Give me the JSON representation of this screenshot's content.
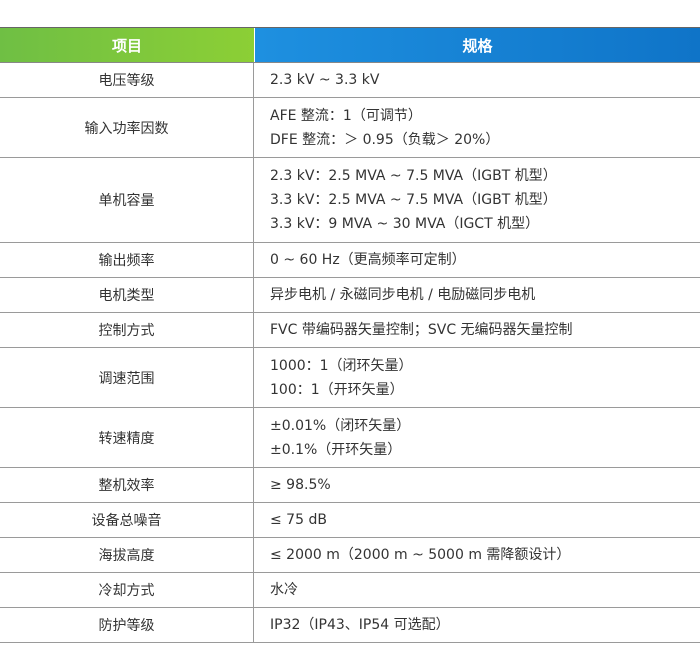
{
  "header": {
    "item": "项目",
    "spec": "规格"
  },
  "rows": [
    {
      "item": "电压等级",
      "lines": [
        "2.3 kV ~ 3.3 kV"
      ]
    },
    {
      "item": "输入功率因数",
      "lines": [
        "AFE 整流：1（可调节）",
        "DFE 整流：＞ 0.95（负载＞ 20%）"
      ]
    },
    {
      "item": "单机容量",
      "lines": [
        "2.3 kV：2.5 MVA ~ 7.5 MVA（IGBT 机型）",
        "3.3 kV：2.5 MVA ~ 7.5 MVA（IGBT 机型）",
        "3.3 kV：9 MVA ~ 30 MVA（IGCT 机型）"
      ]
    },
    {
      "item": "输出频率",
      "lines": [
        "0 ~ 60 Hz（更高频率可定制）"
      ]
    },
    {
      "item": "电机类型",
      "lines": [
        "异步电机 / 永磁同步电机 / 电励磁同步电机"
      ]
    },
    {
      "item": "控制方式",
      "lines": [
        "FVC 带编码器矢量控制；SVC 无编码器矢量控制"
      ]
    },
    {
      "item": "调速范围",
      "lines": [
        "1000：1（闭环矢量）",
        "100：1（开环矢量）"
      ]
    },
    {
      "item": "转速精度",
      "lines": [
        "±0.01%（闭环矢量）",
        "±0.1%（开环矢量）"
      ]
    },
    {
      "item": "整机效率",
      "lines": [
        "≥ 98.5%"
      ]
    },
    {
      "item": "设备总噪音",
      "lines": [
        "≤ 75 dB"
      ]
    },
    {
      "item": "海拔高度",
      "lines": [
        "≤ 2000 m（2000 m ~ 5000 m 需降额设计）"
      ]
    },
    {
      "item": "冷却方式",
      "lines": [
        "水冷"
      ]
    },
    {
      "item": "防护等级",
      "lines": [
        "IP32（IP43、IP54 可选配）"
      ]
    }
  ],
  "colors": {
    "header_item_bg": "#7cc63d",
    "header_spec_bg": "#1782d6",
    "border": "#9a9a9a",
    "text": "#333333"
  }
}
